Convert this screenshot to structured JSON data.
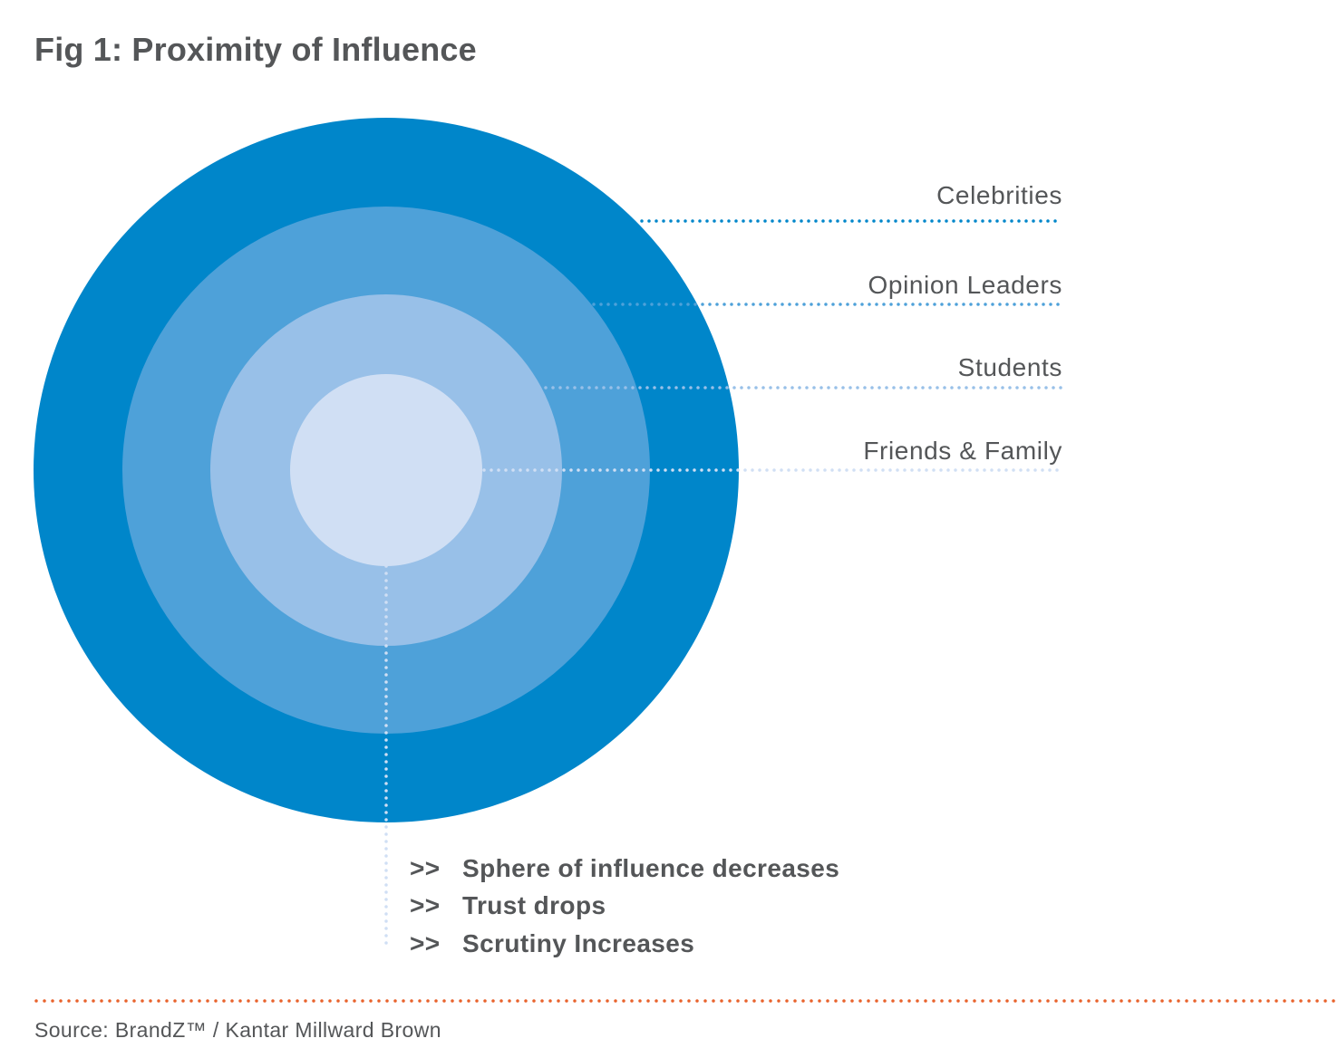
{
  "title": "Fig 1: Proximity of Influence",
  "rings": [
    {
      "id": "celebrities",
      "label": "Celebrities",
      "color": "#0086ca",
      "line_color": "#0086ca"
    },
    {
      "id": "opinion-leaders",
      "label": "Opinion Leaders",
      "color": "#4ea1d9",
      "line_color": "#4ea1d9"
    },
    {
      "id": "students",
      "label": "Students",
      "color": "#98c0e8",
      "line_color": "#98c0e8"
    },
    {
      "id": "friends-family",
      "label": "Friends & Family",
      "color": "#d0dff4",
      "line_color": "#d0dff4"
    }
  ],
  "bullets": [
    {
      "marker": ">>",
      "text": "Sphere of influence decreases"
    },
    {
      "marker": ">>",
      "text": "Trust drops"
    },
    {
      "marker": ">>",
      "text": "Scrutiny Increases"
    }
  ],
  "source": "Source: BrandZ™ / Kantar Millward Brown",
  "colors": {
    "text": "#545658",
    "footer_rule": "#e8622b"
  }
}
